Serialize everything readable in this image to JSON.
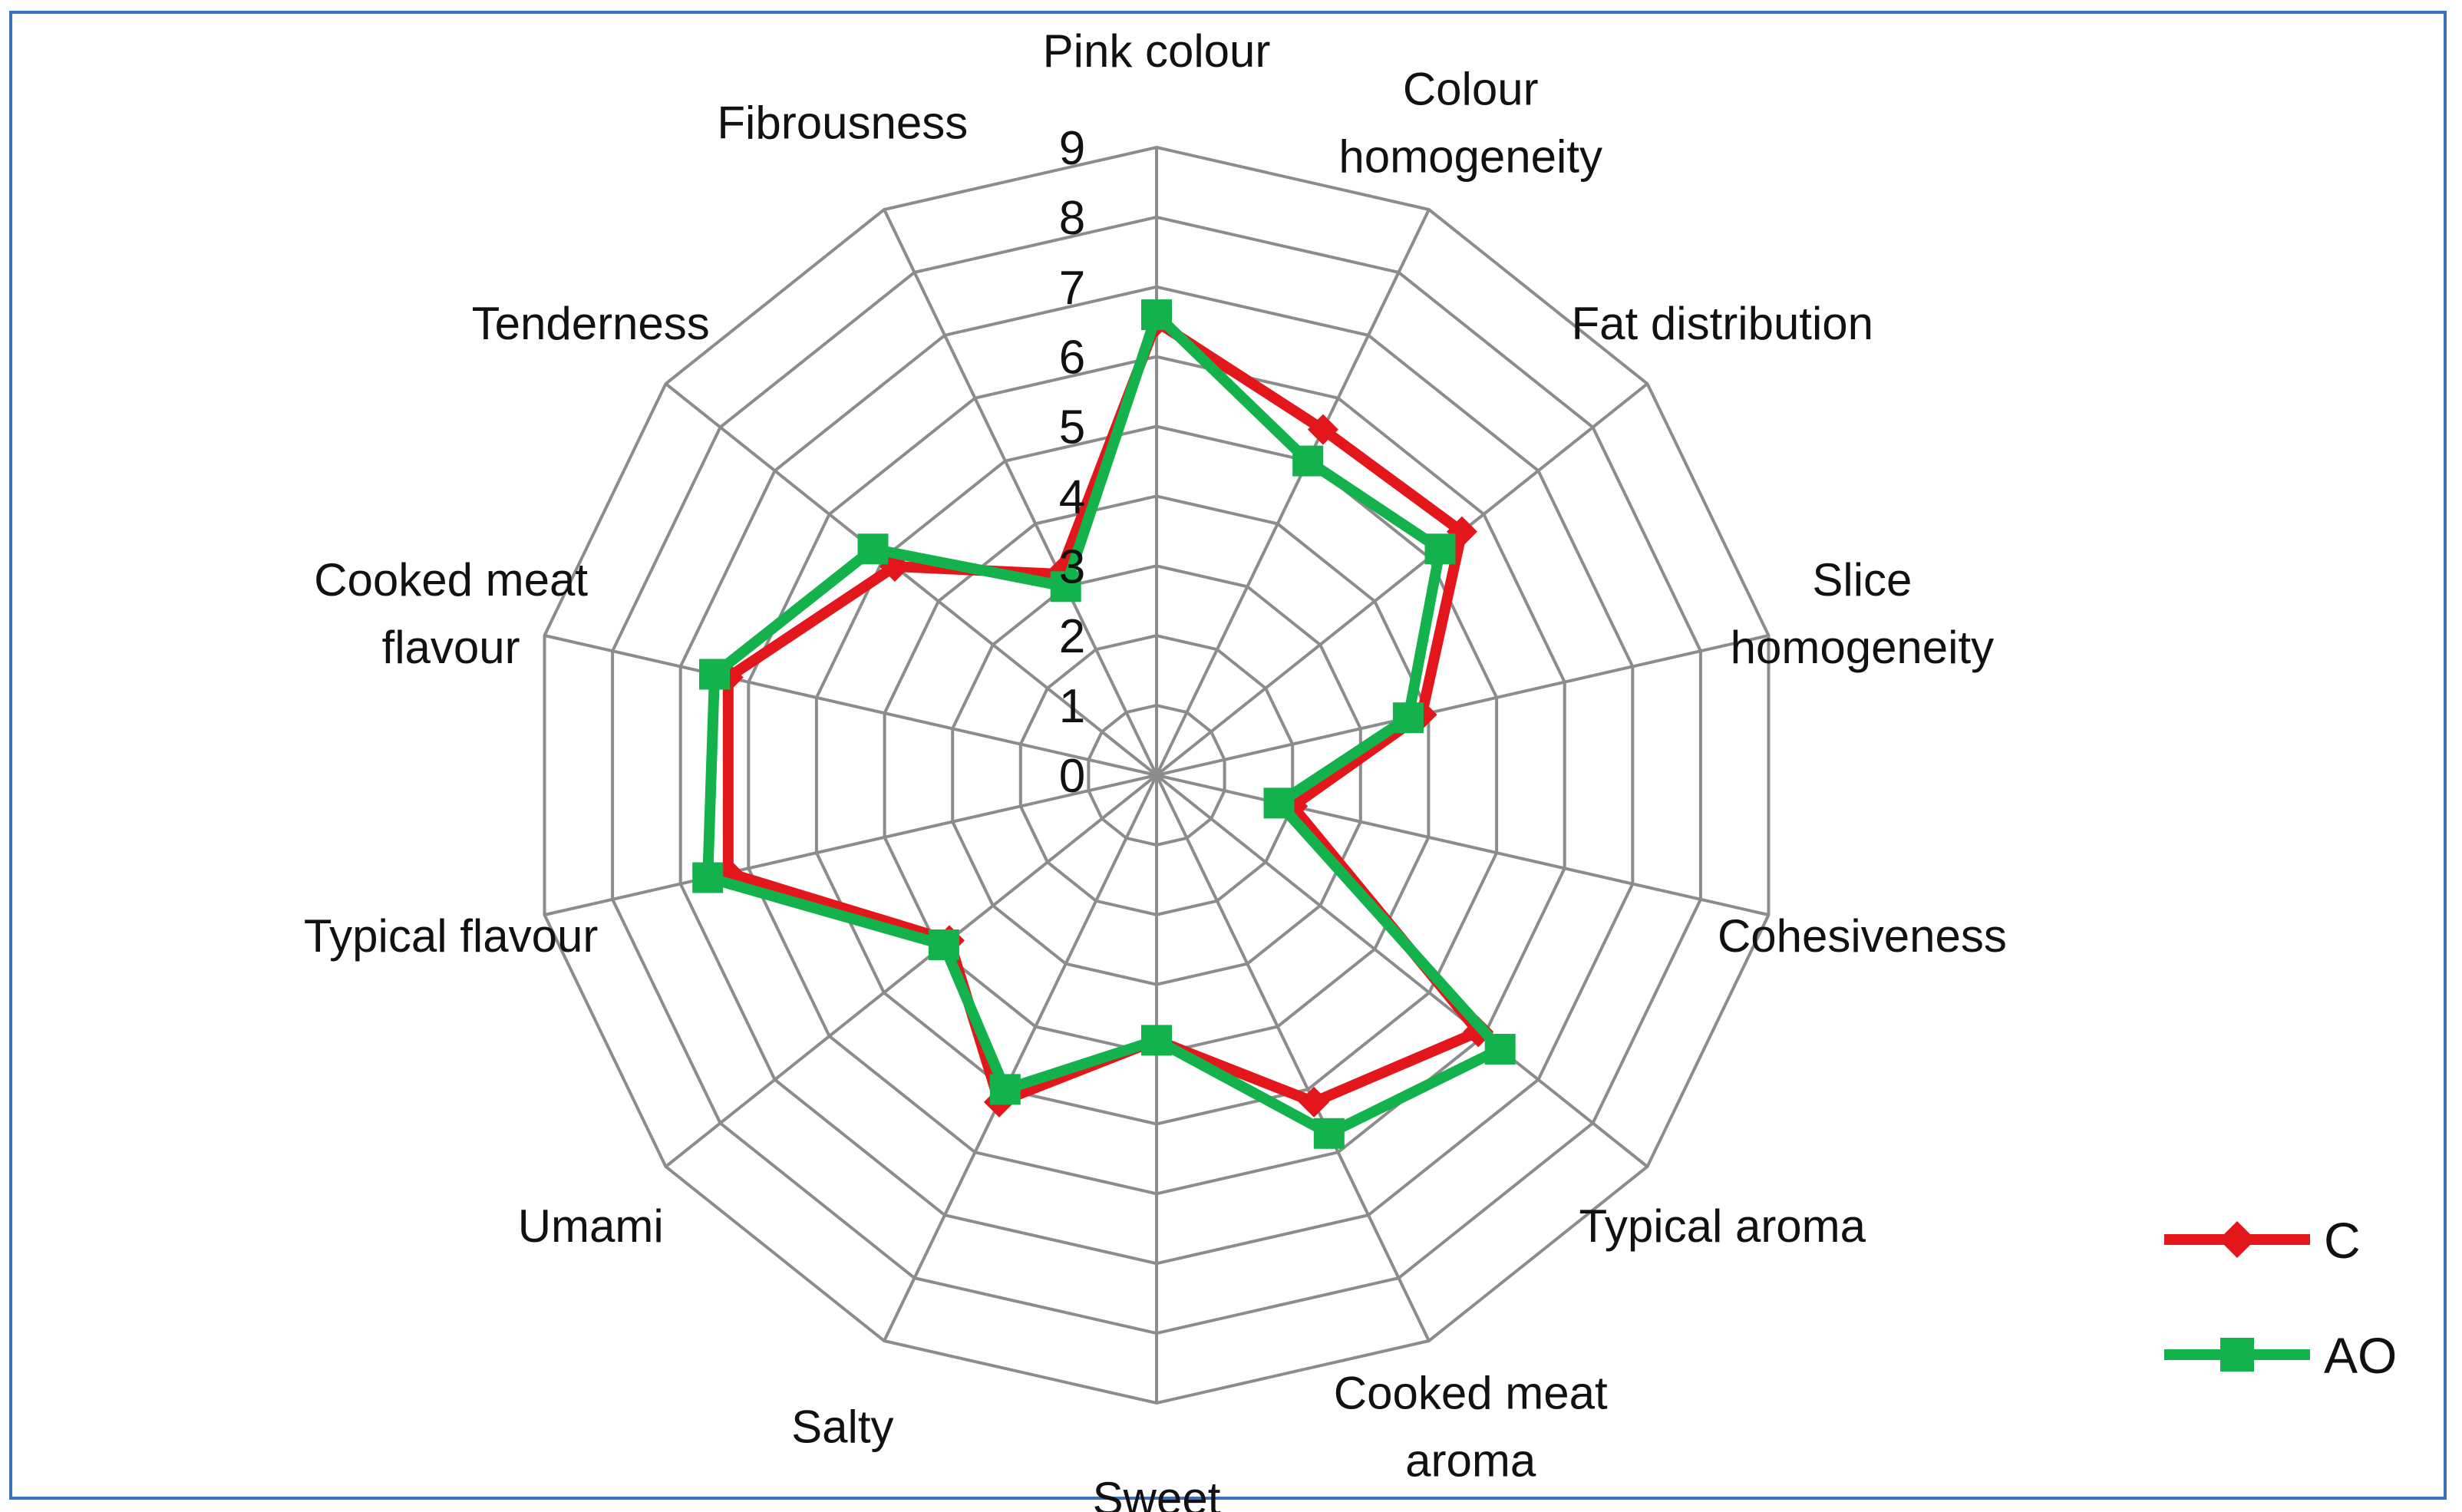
{
  "chart_data": {
    "type": "radar",
    "title": "",
    "categories": [
      "Pink colour",
      "Colour homogeneity",
      "Fat distribution",
      "Slice homogeneity",
      "Cohesiveness",
      "Typical aroma",
      "Cooked meat aroma",
      "Sweet",
      "Salty",
      "Umami",
      "Typical flavour",
      "Cooked meat flavour",
      "Tenderness",
      "Fibrousness"
    ],
    "rlim": [
      0,
      9
    ],
    "ticks": [
      "0",
      "1",
      "2",
      "3",
      "4",
      "5",
      "6",
      "7",
      "8",
      "9"
    ],
    "grid": true,
    "legend_position": "bottom-right",
    "series": [
      {
        "name": "C",
        "color": "#e3171b",
        "marker": "diamond",
        "values": [
          6.5,
          5.5,
          5.6,
          3.9,
          2.0,
          5.9,
          5.2,
          3.8,
          5.2,
          3.8,
          6.3,
          6.3,
          4.8,
          3.2
        ]
      },
      {
        "name": "AO",
        "color": "#13b24c",
        "marker": "square",
        "values": [
          6.6,
          5.0,
          5.2,
          3.7,
          1.8,
          6.3,
          5.7,
          3.8,
          5.0,
          3.9,
          6.6,
          6.5,
          5.2,
          3.0
        ]
      }
    ]
  }
}
